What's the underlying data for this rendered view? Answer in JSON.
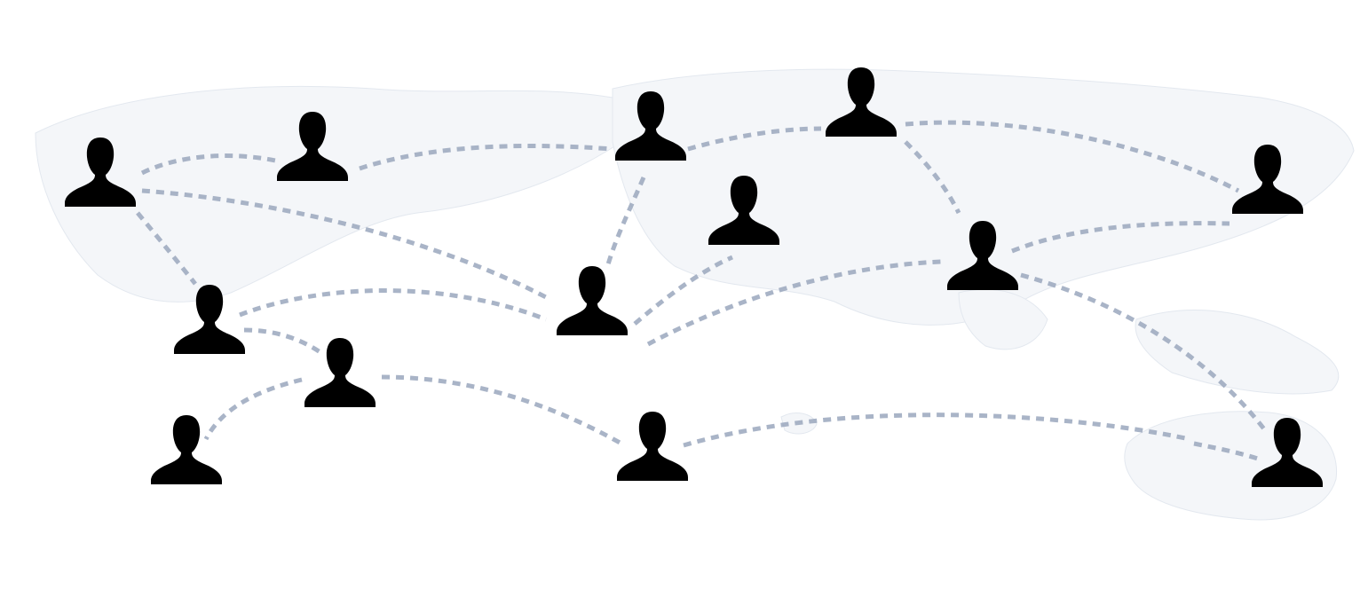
{
  "diagram": {
    "type": "network-map",
    "colors": {
      "person_fill": "#f2b24e",
      "person_outline": "#c9823a",
      "connection": "#9aa7bd",
      "land": "#f4f6f9"
    },
    "nodes": [
      {
        "id": "p1",
        "icon": "person-icon"
      },
      {
        "id": "p2",
        "icon": "person-icon"
      },
      {
        "id": "p3",
        "icon": "person-icon"
      },
      {
        "id": "p4",
        "icon": "person-icon"
      },
      {
        "id": "p5",
        "icon": "person-icon"
      },
      {
        "id": "p6",
        "icon": "person-icon"
      },
      {
        "id": "p7",
        "icon": "person-icon"
      },
      {
        "id": "p8",
        "icon": "person-icon"
      },
      {
        "id": "p9",
        "icon": "person-icon"
      },
      {
        "id": "p10",
        "icon": "person-icon"
      },
      {
        "id": "p11",
        "icon": "person-icon"
      },
      {
        "id": "p12",
        "icon": "person-icon"
      },
      {
        "id": "p13",
        "icon": "person-icon"
      },
      {
        "id": "p14",
        "icon": "person-icon"
      }
    ],
    "connections": [
      [
        "p1",
        "p2"
      ],
      [
        "p2",
        "p3"
      ],
      [
        "p3",
        "p4"
      ],
      [
        "p4",
        "p5"
      ],
      [
        "p1",
        "p6"
      ],
      [
        "p1",
        "p8"
      ],
      [
        "p3",
        "p6"
      ],
      [
        "p8",
        "p6"
      ],
      [
        "p8",
        "p9"
      ],
      [
        "p9",
        "p10"
      ],
      [
        "p6",
        "p7"
      ],
      [
        "p6",
        "p11"
      ],
      [
        "p4",
        "p11"
      ],
      [
        "p11",
        "p5"
      ],
      [
        "p11",
        "p13"
      ],
      [
        "p9",
        "p12"
      ],
      [
        "p12",
        "p13"
      ],
      [
        "p14",
        "p13"
      ]
    ]
  }
}
